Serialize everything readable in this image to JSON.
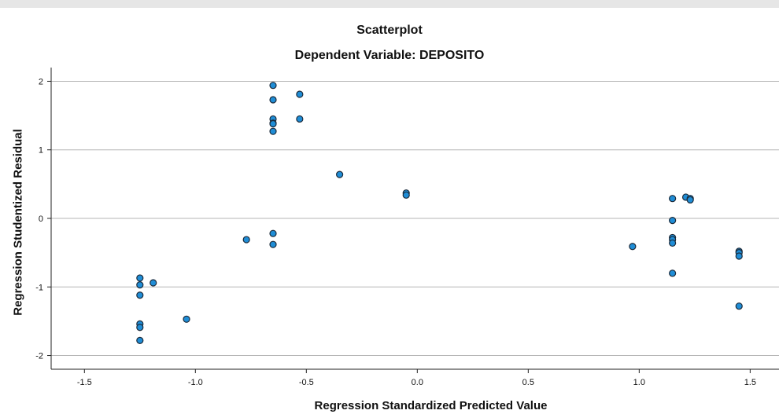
{
  "chart_data": {
    "type": "scatter",
    "title": "Scatterplot",
    "subtitle": "Dependent Variable: DEPOSITO",
    "xlabel": "Regression Standardized Predicted Value",
    "ylabel": "Regression Studentized Residual",
    "xlim": [
      -1.65,
      1.63
    ],
    "ylim": [
      -2.2,
      2.2
    ],
    "x_ticks": [
      "-1.5",
      "-1.0",
      "-0.5",
      "0.0",
      "0.5",
      "1.0",
      "1.5"
    ],
    "y_ticks": [
      "-2",
      "-1",
      "0",
      "1",
      "2"
    ],
    "grid": "horizontal",
    "point_color": "#1f8dd6",
    "point_edge_color": "#1b2a3a",
    "points": [
      {
        "x": -1.25,
        "y": -0.87
      },
      {
        "x": -1.25,
        "y": -0.97
      },
      {
        "x": -1.25,
        "y": -1.12
      },
      {
        "x": -1.25,
        "y": -1.54
      },
      {
        "x": -1.25,
        "y": -1.59
      },
      {
        "x": -1.25,
        "y": -1.78
      },
      {
        "x": -1.19,
        "y": -0.94
      },
      {
        "x": -1.04,
        "y": -1.47
      },
      {
        "x": -0.77,
        "y": -0.31
      },
      {
        "x": -0.65,
        "y": 1.94
      },
      {
        "x": -0.65,
        "y": 1.73
      },
      {
        "x": -0.65,
        "y": 1.45
      },
      {
        "x": -0.65,
        "y": 1.39
      },
      {
        "x": -0.65,
        "y": 1.38
      },
      {
        "x": -0.65,
        "y": 1.27
      },
      {
        "x": -0.65,
        "y": -0.22
      },
      {
        "x": -0.65,
        "y": -0.38
      },
      {
        "x": -0.53,
        "y": 1.81
      },
      {
        "x": -0.53,
        "y": 1.45
      },
      {
        "x": -0.35,
        "y": 0.64
      },
      {
        "x": -0.05,
        "y": 0.37
      },
      {
        "x": -0.05,
        "y": 0.34
      },
      {
        "x": 0.97,
        "y": -0.41
      },
      {
        "x": 1.15,
        "y": 0.29
      },
      {
        "x": 1.15,
        "y": -0.03
      },
      {
        "x": 1.15,
        "y": -0.28
      },
      {
        "x": 1.15,
        "y": -0.31
      },
      {
        "x": 1.15,
        "y": -0.36
      },
      {
        "x": 1.15,
        "y": -0.8
      },
      {
        "x": 1.21,
        "y": 0.31
      },
      {
        "x": 1.23,
        "y": 0.29
      },
      {
        "x": 1.23,
        "y": 0.27
      },
      {
        "x": 1.45,
        "y": -0.48
      },
      {
        "x": 1.45,
        "y": -0.5
      },
      {
        "x": 1.45,
        "y": -0.55
      },
      {
        "x": 1.45,
        "y": -1.28
      }
    ]
  }
}
